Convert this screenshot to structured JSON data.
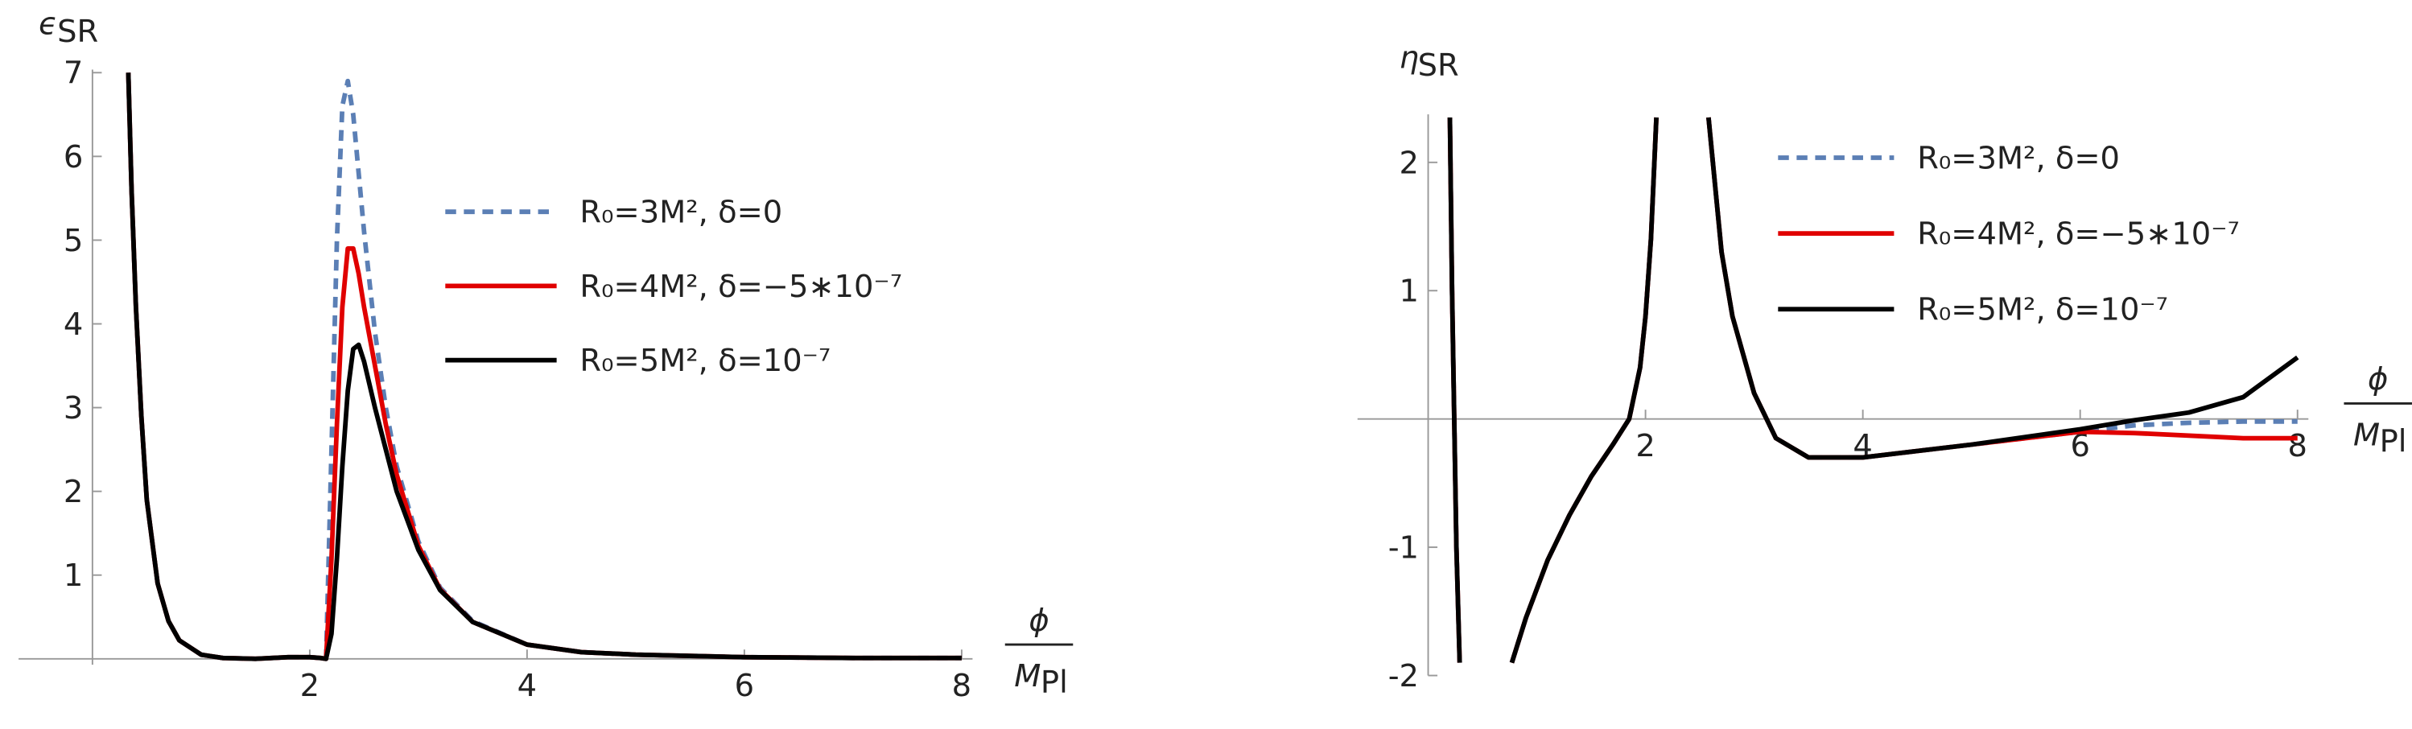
{
  "chart_data": [
    {
      "type": "line",
      "ylabel": {
        "symbol": "ϵ",
        "subscript": "SR"
      },
      "xlabel": {
        "numerator": "ϕ",
        "denominator": {
          "symbol": "M",
          "subscript": "Pl"
        }
      },
      "xlim": [
        -0.68,
        8.1
      ],
      "ylim": [
        -0.07,
        7
      ],
      "xticks": [
        2,
        4,
        6,
        8
      ],
      "yticks": [
        1,
        2,
        3,
        4,
        5,
        6,
        7
      ],
      "x": [
        0.33,
        0.36,
        0.4,
        0.45,
        0.5,
        0.6,
        0.7,
        0.8,
        1.0,
        1.2,
        1.5,
        1.8,
        2.0,
        2.1,
        2.15,
        2.2,
        2.25,
        2.3,
        2.35,
        2.4,
        2.45,
        2.5,
        2.6,
        2.7,
        2.8,
        3.0,
        3.2,
        3.5,
        4,
        4.5,
        5,
        6,
        7,
        8
      ],
      "series": [
        {
          "name": "R₀=3M², δ=0",
          "color": "#5b7fb5",
          "style": "dashed",
          "values": [
            7,
            5.6,
            4.2,
            2.9,
            1.9,
            0.9,
            0.45,
            0.22,
            0.05,
            0.01,
            0,
            0.02,
            0.02,
            0.01,
            0,
            2.5,
            5.0,
            6.6,
            6.9,
            6.5,
            5.8,
            5.1,
            3.9,
            3.0,
            2.3,
            1.4,
            0.85,
            0.45,
            0.17,
            0.08,
            0.05,
            0.02,
            0.01,
            0.01
          ]
        },
        {
          "name": "R₀=4M², δ=−5∗10⁻⁷",
          "color": "#e00000",
          "style": "solid",
          "values": [
            7,
            5.6,
            4.2,
            2.9,
            1.9,
            0.9,
            0.45,
            0.22,
            0.05,
            0.01,
            0,
            0.02,
            0.02,
            0.01,
            0,
            1.2,
            2.8,
            4.2,
            4.9,
            4.9,
            4.6,
            4.2,
            3.5,
            2.8,
            2.2,
            1.35,
            0.83,
            0.44,
            0.17,
            0.08,
            0.05,
            0.02,
            0.01,
            0.01
          ]
        },
        {
          "name": "R₀=5M², δ=10⁻⁷",
          "color": "#000000",
          "style": "solid",
          "values": [
            7,
            5.6,
            4.2,
            2.9,
            1.9,
            0.9,
            0.45,
            0.22,
            0.05,
            0.01,
            0,
            0.02,
            0.02,
            0.01,
            0,
            0.3,
            1.2,
            2.3,
            3.2,
            3.7,
            3.75,
            3.55,
            3.0,
            2.5,
            2.0,
            1.3,
            0.82,
            0.44,
            0.17,
            0.08,
            0.05,
            0.02,
            0.01,
            0.01
          ]
        }
      ]
    },
    {
      "type": "line",
      "ylabel": {
        "symbol": "η",
        "subscript": "SR"
      },
      "xlabel": {
        "numerator": "ϕ",
        "denominator": {
          "symbol": "M",
          "subscript": "Pl"
        }
      },
      "xlim": [
        -0.65,
        8.1
      ],
      "ylim": [
        -2,
        2.35
      ],
      "xticks": [
        2,
        4,
        6,
        8
      ],
      "yticks": [
        -2,
        -1,
        1,
        2
      ],
      "x": [
        0.2,
        0.22,
        0.24,
        0.26,
        0.29,
        0.5,
        0.77,
        0.9,
        1.1,
        1.3,
        1.5,
        1.7,
        1.85,
        1.95,
        2.0,
        2.05,
        2.1,
        2.3,
        2.58,
        2.7,
        2.8,
        3.0,
        3.2,
        3.5,
        4,
        5,
        6,
        6.5,
        7,
        7.5,
        8
      ],
      "series": [
        {
          "name": "R₀=3M², δ=0",
          "color": "#5b7fb5",
          "style": "dashed",
          "values": [
            2.35,
            1.0,
            0,
            -1,
            -1.9,
            null,
            -1.9,
            -1.55,
            -1.1,
            -0.75,
            -0.45,
            -0.2,
            0,
            0.4,
            0.8,
            1.4,
            2.35,
            null,
            2.35,
            1.3,
            0.8,
            0.2,
            -0.15,
            -0.3,
            -0.3,
            -0.2,
            -0.1,
            -0.05,
            -0.03,
            -0.02,
            -0.02
          ]
        },
        {
          "name": "R₀=4M², δ=−5∗10⁻⁷",
          "color": "#e00000",
          "style": "solid",
          "values": [
            2.35,
            1.0,
            0,
            -1,
            -1.9,
            null,
            -1.9,
            -1.55,
            -1.1,
            -0.75,
            -0.45,
            -0.2,
            0,
            0.4,
            0.8,
            1.4,
            2.35,
            null,
            2.35,
            1.3,
            0.8,
            0.2,
            -0.15,
            -0.3,
            -0.3,
            -0.2,
            -0.1,
            -0.11,
            -0.13,
            -0.15,
            -0.15
          ]
        },
        {
          "name": "R₀=5M², δ=10⁻⁷",
          "color": "#000000",
          "style": "solid",
          "values": [
            2.35,
            1.0,
            0,
            -1,
            -1.9,
            null,
            -1.9,
            -1.55,
            -1.1,
            -0.75,
            -0.45,
            -0.2,
            0,
            0.4,
            0.8,
            1.4,
            2.35,
            null,
            2.35,
            1.3,
            0.8,
            0.2,
            -0.15,
            -0.3,
            -0.3,
            -0.2,
            -0.08,
            -0.01,
            0.05,
            0.17,
            0.48
          ]
        }
      ]
    }
  ]
}
